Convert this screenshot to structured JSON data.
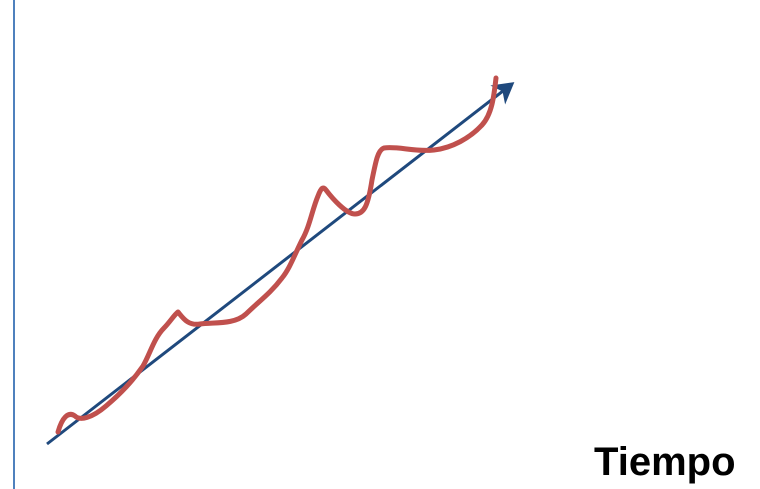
{
  "axis_label": "Tiempo",
  "colors": {
    "vertical_axis": "#4f81bd",
    "trend_arrow": "#1f497d",
    "fluctuating_curve": "#c0504d",
    "label": "#000000",
    "background": "#ffffff"
  }
}
